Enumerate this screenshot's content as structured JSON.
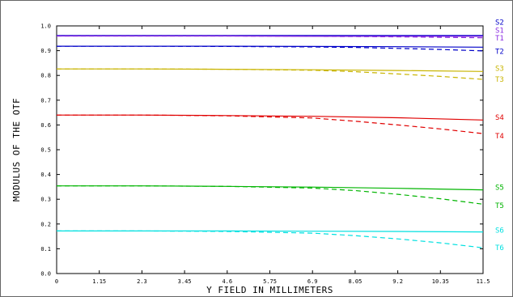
{
  "chart_data": {
    "type": "line",
    "xlabel": "Y FIELD IN MILLIMETERS",
    "ylabel": "MODULUS OF THE OTF",
    "xlim": [
      0,
      11.5
    ],
    "ylim": [
      0,
      1.0
    ],
    "xticks": [
      "0",
      "1.15",
      "2.3",
      "3.45",
      "4.6",
      "5.75",
      "6.9",
      "8.05",
      "9.2",
      "10.35",
      "11.5"
    ],
    "yticks": [
      "0.0",
      "0.1",
      "0.2",
      "0.3",
      "0.4",
      "0.5",
      "0.6",
      "0.7",
      "0.8",
      "0.9",
      "1.0"
    ],
    "grid": false,
    "series": [
      {
        "name": "S2",
        "color": "#0000c8",
        "style": "solid",
        "x": [
          0,
          2.3,
          4.6,
          6.9,
          9.2,
          11.5
        ],
        "y": [
          0.961,
          0.961,
          0.961,
          0.961,
          0.961,
          0.961
        ]
      },
      {
        "name": "S1",
        "color": "#8a2be2",
        "style": "solid",
        "x": [
          0,
          2.3,
          4.6,
          6.9,
          9.2,
          11.5
        ],
        "y": [
          0.959,
          0.959,
          0.959,
          0.958,
          0.958,
          0.958
        ]
      },
      {
        "name": "T1",
        "color": "#8a2be2",
        "style": "dashed",
        "x": [
          0,
          2.3,
          4.6,
          6.9,
          8.05,
          9.2,
          10.35,
          11.5
        ],
        "y": [
          0.959,
          0.959,
          0.959,
          0.958,
          0.957,
          0.956,
          0.954,
          0.952
        ]
      },
      {
        "name": "S2",
        "color": "#0000c8",
        "style": "solid",
        "x": [
          0,
          2.3,
          4.6,
          6.9,
          9.2,
          11.5
        ],
        "y": [
          0.918,
          0.918,
          0.918,
          0.917,
          0.916,
          0.914
        ]
      },
      {
        "name": "T2",
        "color": "#0000c8",
        "style": "dashed",
        "x": [
          0,
          2.3,
          4.6,
          6.9,
          8.05,
          9.2,
          10.35,
          11.5
        ],
        "y": [
          0.918,
          0.918,
          0.917,
          0.915,
          0.913,
          0.909,
          0.905,
          0.899
        ]
      },
      {
        "name": "S3",
        "color": "#c8b400",
        "style": "solid",
        "x": [
          0,
          2.3,
          4.6,
          6.9,
          9.2,
          11.5
        ],
        "y": [
          0.826,
          0.826,
          0.825,
          0.823,
          0.82,
          0.816
        ]
      },
      {
        "name": "T3",
        "color": "#c8b400",
        "style": "dashed",
        "x": [
          0,
          2.3,
          4.6,
          6.9,
          8.05,
          9.2,
          10.35,
          11.5
        ],
        "y": [
          0.826,
          0.826,
          0.825,
          0.821,
          0.815,
          0.806,
          0.796,
          0.784
        ]
      },
      {
        "name": "S4",
        "color": "#e00000",
        "style": "solid",
        "x": [
          0,
          2.3,
          4.6,
          6.9,
          9.2,
          11.5
        ],
        "y": [
          0.64,
          0.64,
          0.638,
          0.635,
          0.629,
          0.62
        ]
      },
      {
        "name": "T4",
        "color": "#e00000",
        "style": "dashed",
        "x": [
          0,
          2.3,
          4.6,
          6.9,
          8.05,
          9.2,
          10.35,
          11.5
        ],
        "y": [
          0.64,
          0.64,
          0.637,
          0.628,
          0.615,
          0.6,
          0.584,
          0.565
        ]
      },
      {
        "name": "S5",
        "color": "#00b400",
        "style": "solid",
        "x": [
          0,
          2.3,
          4.6,
          6.9,
          9.2,
          11.5
        ],
        "y": [
          0.354,
          0.354,
          0.352,
          0.349,
          0.344,
          0.338
        ]
      },
      {
        "name": "T5",
        "color": "#00b400",
        "style": "dashed",
        "x": [
          0,
          2.3,
          4.6,
          6.9,
          8.05,
          9.2,
          10.35,
          11.5
        ],
        "y": [
          0.354,
          0.354,
          0.352,
          0.345,
          0.335,
          0.32,
          0.302,
          0.28
        ]
      },
      {
        "name": "S6",
        "color": "#00e0e0",
        "style": "solid",
        "x": [
          0,
          2.3,
          4.6,
          6.9,
          9.2,
          11.5
        ],
        "y": [
          0.172,
          0.172,
          0.172,
          0.171,
          0.17,
          0.168
        ]
      },
      {
        "name": "T6",
        "color": "#00e0e0",
        "style": "dashed",
        "x": [
          0,
          2.3,
          4.6,
          6.9,
          8.05,
          9.2,
          10.35,
          11.5
        ],
        "y": [
          0.172,
          0.172,
          0.17,
          0.163,
          0.153,
          0.14,
          0.124,
          0.104
        ]
      }
    ],
    "labels": [
      {
        "text": "S2",
        "color": "#0000c8",
        "y": 1.015
      },
      {
        "text": "S1",
        "color": "#8a2be2",
        "y": 0.982
      },
      {
        "text": "T1",
        "color": "#8a2be2",
        "y": 0.951
      },
      {
        "text": "T2",
        "color": "#0000c8",
        "y": 0.897
      },
      {
        "text": "S3",
        "color": "#c8b400",
        "y": 0.828
      },
      {
        "text": "T3",
        "color": "#c8b400",
        "y": 0.784
      },
      {
        "text": "S4",
        "color": "#e00000",
        "y": 0.63
      },
      {
        "text": "T4",
        "color": "#e00000",
        "y": 0.555
      },
      {
        "text": "S5",
        "color": "#00b400",
        "y": 0.348
      },
      {
        "text": "T5",
        "color": "#00b400",
        "y": 0.275
      },
      {
        "text": "S6",
        "color": "#00e0e0",
        "y": 0.175
      },
      {
        "text": "T6",
        "color": "#00e0e0",
        "y": 0.105
      }
    ]
  }
}
